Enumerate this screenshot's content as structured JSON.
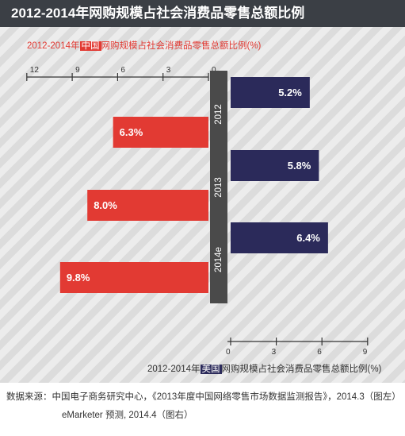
{
  "header": {
    "title": "2012-2014年网购规模占社会消费品零售总额比例"
  },
  "captions": {
    "china_prefix": "2012-2014年",
    "china_highlight": "中国",
    "china_suffix": "网购规模占社会消费品零售总额比例(%)",
    "us_prefix": "2012-2014年",
    "us_highlight": "美国",
    "us_suffix": "网购规模占社会消费品零售总额比例(%)"
  },
  "source": {
    "line1": "数据来源：中国电子商务研究中心，《2013年度中国网络零售市场数据监测报告》，2014.3（图左）",
    "line2": "eMarketer 预测, 2014.4（图右）"
  },
  "colors": {
    "china": "#e23a33",
    "us": "#2b2a5a",
    "year_label_bg": "#4a4a4a",
    "axis": "#333333"
  },
  "chart_data": {
    "type": "bar",
    "categories": [
      "2012",
      "2013",
      "2014e"
    ],
    "series": [
      {
        "name": "美国",
        "values": [
          5.2,
          5.8,
          6.4
        ],
        "labels": [
          "5.2%",
          "5.8%",
          "6.4%"
        ]
      },
      {
        "name": "中国",
        "values": [
          6.3,
          8.0,
          9.8
        ],
        "labels": [
          "6.3%",
          "8.0%",
          "9.8%"
        ]
      }
    ],
    "china_axis": {
      "ticks": [
        12,
        9,
        6,
        3,
        0
      ],
      "range": [
        0,
        12
      ]
    },
    "us_axis": {
      "ticks": [
        0,
        3,
        6,
        9
      ],
      "range": [
        0,
        9
      ]
    }
  }
}
